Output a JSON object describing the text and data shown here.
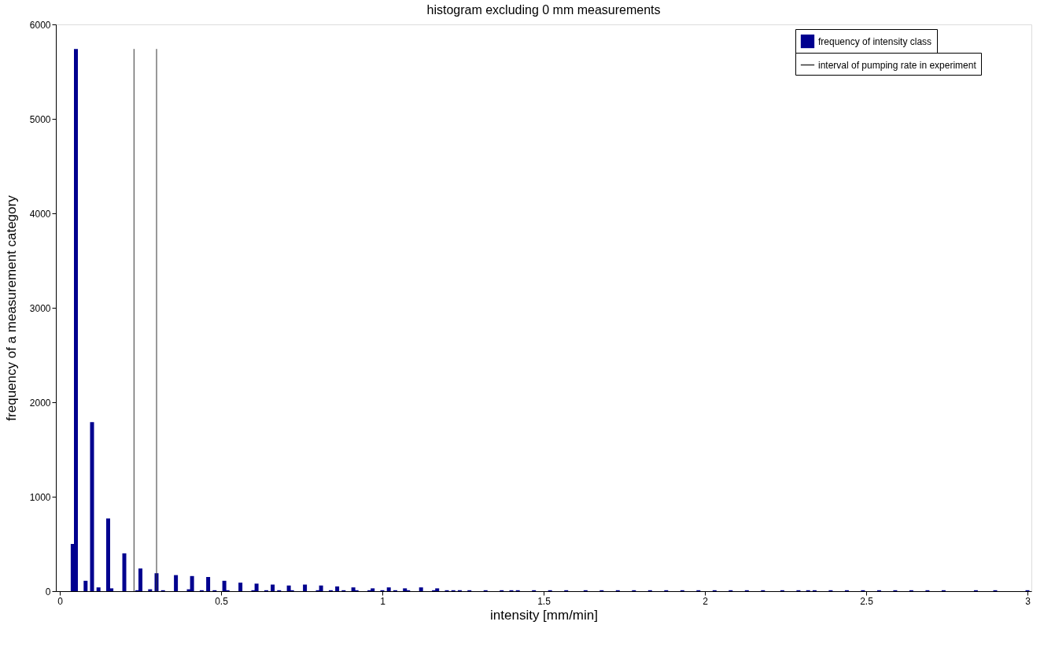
{
  "chart_data": {
    "type": "bar",
    "title": "histogram excluding 0 mm measurements",
    "xlabel": "intensity [mm/min]",
    "ylabel": "frequency of a measurement category",
    "xlim": [
      0,
      3
    ],
    "ylim": [
      0,
      6000
    ],
    "xticks": [
      0,
      0.5,
      1,
      1.5,
      2,
      2.5,
      3
    ],
    "yticks": [
      0,
      1000,
      2000,
      3000,
      4000,
      5000,
      6000
    ],
    "grid": false,
    "legend": "top right",
    "series": [
      {
        "name": "frequency of intensity class",
        "color": "#00008f",
        "x": [
          0.04,
          0.05,
          0.08,
          0.1,
          0.12,
          0.15,
          0.16,
          0.2,
          0.24,
          0.25,
          0.28,
          0.3,
          0.32,
          0.36,
          0.4,
          0.41,
          0.44,
          0.46,
          0.48,
          0.51,
          0.52,
          0.56,
          0.6,
          0.61,
          0.64,
          0.66,
          0.68,
          0.71,
          0.72,
          0.76,
          0.8,
          0.81,
          0.84,
          0.86,
          0.88,
          0.91,
          0.92,
          0.96,
          0.97,
          1.0,
          1.02,
          1.04,
          1.07,
          1.08,
          1.12,
          1.16,
          1.17,
          1.2,
          1.22,
          1.24,
          1.27,
          1.32,
          1.37,
          1.4,
          1.42,
          1.47,
          1.52,
          1.57,
          1.63,
          1.68,
          1.73,
          1.78,
          1.83,
          1.88,
          1.93,
          1.98,
          2.03,
          2.08,
          2.13,
          2.18,
          2.24,
          2.29,
          2.32,
          2.34,
          2.39,
          2.44,
          2.49,
          2.54,
          2.59,
          2.64,
          2.69,
          2.74,
          2.84,
          2.9,
          3.0
        ],
        "values": [
          500,
          5740,
          110,
          1790,
          40,
          770,
          30,
          400,
          10,
          240,
          20,
          190,
          10,
          170,
          20,
          160,
          10,
          150,
          10,
          110,
          10,
          90,
          10,
          80,
          10,
          70,
          10,
          60,
          10,
          70,
          10,
          60,
          10,
          50,
          10,
          40,
          10,
          10,
          30,
          10,
          40,
          10,
          30,
          10,
          40,
          10,
          30,
          10,
          10,
          10,
          10,
          10,
          10,
          10,
          10,
          10,
          10,
          10,
          10,
          10,
          10,
          10,
          10,
          10,
          10,
          10,
          10,
          10,
          10,
          10,
          10,
          10,
          10,
          10,
          10,
          10,
          10,
          10,
          10,
          10,
          10,
          10,
          10,
          10,
          10
        ]
      },
      {
        "name": "interval of pumping rate in experiment",
        "color": "#333333",
        "type": "line",
        "x": [
          0.23,
          0.23,
          null,
          0.3,
          0.3
        ],
        "values": [
          0,
          5740,
          null,
          0,
          5740
        ]
      }
    ],
    "line_style": "solid"
  }
}
